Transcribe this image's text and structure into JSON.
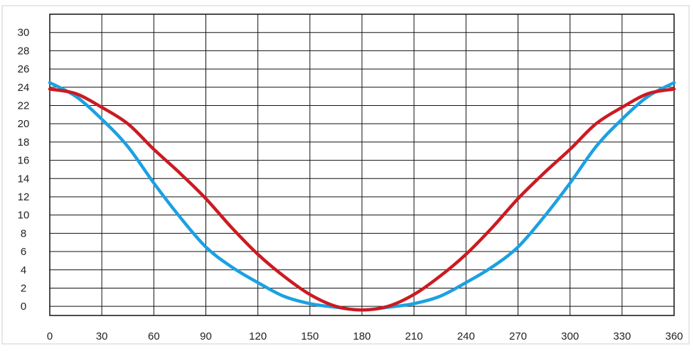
{
  "chart_data": {
    "type": "line",
    "title": "",
    "xlabel": "",
    "ylabel": "",
    "grid": true,
    "legend": "none",
    "xlim": [
      0,
      360
    ],
    "ylim": [
      -1,
      32
    ],
    "x_ticks": [
      0,
      30,
      60,
      90,
      120,
      150,
      180,
      210,
      240,
      270,
      300,
      330,
      360
    ],
    "x_tick_labels": [
      "0",
      "30",
      "60",
      "90",
      "120",
      "150",
      "180",
      "210",
      "240",
      "270",
      "300",
      "330",
      "360"
    ],
    "y_ticks": [
      0,
      2,
      4,
      6,
      8,
      10,
      12,
      14,
      16,
      18,
      20,
      22,
      24,
      26,
      28,
      30
    ],
    "y_tick_labels": [
      "0",
      "2",
      "4",
      "6",
      "8",
      "10",
      "12",
      "14",
      "16",
      "18",
      "20",
      "22",
      "24",
      "26",
      "28",
      "30"
    ],
    "series": [
      {
        "color": "#1ba1e2",
        "x": [
          0,
          15,
          30,
          45,
          60,
          75,
          90,
          105,
          120,
          135,
          150,
          165,
          180,
          195,
          210,
          225,
          240,
          255,
          270,
          285,
          300,
          315,
          330,
          345,
          360
        ],
        "y": [
          24.5,
          23.0,
          20.5,
          17.5,
          13.5,
          9.8,
          6.5,
          4.3,
          2.6,
          1.1,
          0.3,
          -0.1,
          -0.4,
          -0.1,
          0.3,
          1.1,
          2.6,
          4.3,
          6.5,
          9.8,
          13.5,
          17.5,
          20.5,
          23.0,
          24.5
        ]
      },
      {
        "color": "#cc1a22",
        "x": [
          0,
          15,
          30,
          45,
          60,
          75,
          90,
          105,
          120,
          135,
          150,
          165,
          180,
          195,
          210,
          225,
          240,
          255,
          270,
          285,
          300,
          315,
          330,
          345,
          360
        ],
        "y": [
          23.8,
          23.3,
          21.8,
          20.0,
          17.2,
          14.6,
          11.8,
          8.6,
          5.7,
          3.3,
          1.3,
          0.0,
          -0.4,
          0.0,
          1.3,
          3.3,
          5.7,
          8.6,
          11.8,
          14.6,
          17.2,
          20.0,
          21.8,
          23.3,
          23.8
        ]
      }
    ]
  }
}
